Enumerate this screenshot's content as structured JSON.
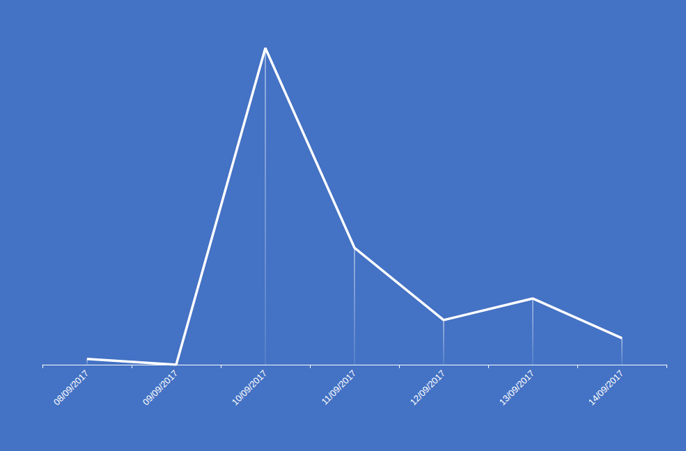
{
  "chart_data": {
    "type": "line",
    "categories": [
      "08/09/2017",
      "09/09/2017",
      "10/09/2017",
      "11/09/2017",
      "12/09/2017",
      "13/09/2017",
      "14/09/2017"
    ],
    "values": [
      1.8,
      0,
      100,
      36.9,
      14.1,
      20.9,
      8.4
    ],
    "color": "#ffffff",
    "ylim": [
      0,
      100
    ],
    "grid": false,
    "tick_labels": "x"
  }
}
